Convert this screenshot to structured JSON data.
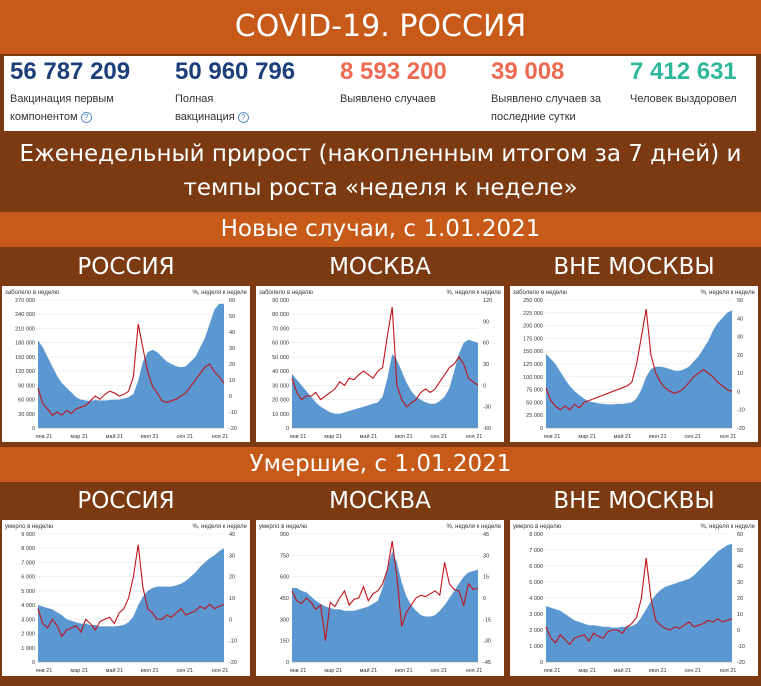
{
  "header": {
    "title": "COVID-19. РОССИЯ"
  },
  "stats": [
    {
      "value": "56 787 209",
      "label": "Вакцинация первым компонентом",
      "color": "#1c3f7a",
      "help": true
    },
    {
      "value": "50 960 796",
      "label": "Полная вакцинация",
      "color": "#1c3f7a",
      "help": true
    },
    {
      "value": "8 593 200",
      "label": "Выявлено случаев",
      "color": "#ee6a52",
      "help": false
    },
    {
      "value": "39 008",
      "label": "Выявлено случаев за последние сутки",
      "color": "#ee6a52",
      "help": false
    },
    {
      "value": "7 412 631",
      "label": "Человек выздоровел",
      "color": "#2fb89a",
      "help": false
    }
  ],
  "subtitle": "Еженедельный прирост (накопленным итогом за 7 дней) и темпы роста «неделя к неделе»",
  "sections": {
    "cases": "Новые случаи, с 1.01.2021",
    "deaths": "Умершие, с 1.01.2021"
  },
  "colors": {
    "area": "#5b97d1",
    "line": "#c0141a",
    "brown": "#7b3a12",
    "orange": "#c75a18"
  },
  "chart_data": [
    {
      "type": "area",
      "region": "РОССИЯ",
      "left_label": "заболело в неделю",
      "right_label": "%, неделя к неделе",
      "x_ticks": [
        "янв 21",
        "мар 21",
        "май 21",
        "июл 21",
        "сен 21",
        "ноя 21"
      ],
      "y_left": {
        "ticks": [
          "0",
          "30 000",
          "60 000",
          "90 000",
          "120 000",
          "150 000",
          "180 000",
          "210 000",
          "240 000",
          "270 000"
        ],
        "min": 0,
        "max": 270000
      },
      "y_right": {
        "ticks": [
          "-20",
          "-10",
          "0",
          "10",
          "20",
          "30",
          "40",
          "50",
          "60"
        ],
        "min": -20,
        "max": 60
      },
      "weekly": [
        185000,
        170000,
        150000,
        130000,
        110000,
        95000,
        85000,
        75000,
        65000,
        60000,
        58000,
        57000,
        59000,
        58000,
        58000,
        59000,
        60000,
        60000,
        62000,
        65000,
        72000,
        100000,
        140000,
        160000,
        165000,
        160000,
        150000,
        140000,
        135000,
        130000,
        128000,
        130000,
        140000,
        150000,
        170000,
        190000,
        220000,
        250000,
        262000,
        262000
      ],
      "growth": [
        5,
        -5,
        -8,
        -12,
        -10,
        -12,
        -9,
        -11,
        -8,
        -7,
        -6,
        -3,
        0,
        -2,
        1,
        3,
        2,
        0,
        1,
        3,
        12,
        45,
        30,
        15,
        6,
        2,
        -3,
        -4,
        -3,
        -2,
        0,
        2,
        6,
        10,
        14,
        18,
        20,
        15,
        12,
        8
      ]
    },
    {
      "type": "area",
      "region": "МОСКВА",
      "left_label": "заболело в неделю",
      "right_label": "%, неделя к неделе",
      "x_ticks": [
        "янв 21",
        "мар 21",
        "май 21",
        "июл 21",
        "сен 21",
        "ноя 21"
      ],
      "y_left": {
        "ticks": [
          "0",
          "10 000",
          "20 000",
          "30 000",
          "40 000",
          "50 000",
          "60 000",
          "70 000",
          "80 000",
          "90 000"
        ],
        "min": 0,
        "max": 90000
      },
      "y_right": {
        "ticks": [
          "-60",
          "-30",
          "0",
          "30",
          "60",
          "90",
          "120"
        ],
        "min": -60,
        "max": 120
      },
      "weekly": [
        38000,
        34000,
        30000,
        26000,
        22000,
        18000,
        15000,
        13000,
        11000,
        10000,
        10000,
        11000,
        12000,
        13000,
        14000,
        15000,
        16000,
        17000,
        18000,
        22000,
        35000,
        52000,
        48000,
        40000,
        32000,
        26000,
        22000,
        20000,
        18000,
        17000,
        17000,
        19000,
        22000,
        28000,
        40000,
        52000,
        60000,
        62000,
        61000,
        60000
      ],
      "growth": [
        10,
        -10,
        -20,
        -15,
        -15,
        -10,
        -20,
        -15,
        -10,
        -5,
        5,
        0,
        10,
        8,
        15,
        20,
        15,
        10,
        20,
        25,
        70,
        110,
        0,
        -20,
        -30,
        -25,
        -20,
        -10,
        -5,
        -10,
        -5,
        5,
        15,
        25,
        30,
        40,
        30,
        10,
        5,
        0
      ]
    },
    {
      "type": "area",
      "region": "ВНЕ МОСКВЫ",
      "left_label": "заболело в неделю",
      "right_label": "%, неделя к неделе",
      "x_ticks": [
        "янв 21",
        "мар 21",
        "май 21",
        "июл 21",
        "сен 21",
        "ноя 21"
      ],
      "y_left": {
        "ticks": [
          "0",
          "25 000",
          "50 000",
          "75 000",
          "100 000",
          "125 000",
          "150 000",
          "175 000",
          "200 000",
          "225 000",
          "250 000"
        ],
        "min": 0,
        "max": 250000
      },
      "y_right": {
        "ticks": [
          "-20",
          "-10",
          "0",
          "10",
          "20",
          "30",
          "40",
          "50"
        ],
        "min": -20,
        "max": 50
      },
      "weekly": [
        145000,
        135000,
        125000,
        110000,
        95000,
        82000,
        72000,
        64000,
        57000,
        52000,
        50000,
        48000,
        47000,
        46000,
        46000,
        47000,
        47000,
        48000,
        50000,
        58000,
        75000,
        100000,
        115000,
        120000,
        120000,
        118000,
        115000,
        112000,
        112000,
        115000,
        120000,
        130000,
        140000,
        155000,
        170000,
        190000,
        205000,
        215000,
        225000,
        230000
      ],
      "growth": [
        2,
        -5,
        -8,
        -10,
        -8,
        -10,
        -7,
        -9,
        -6,
        -5,
        -4,
        -3,
        -2,
        -1,
        0,
        1,
        2,
        3,
        5,
        15,
        30,
        45,
        20,
        10,
        5,
        2,
        0,
        -1,
        0,
        2,
        5,
        8,
        10,
        12,
        10,
        8,
        5,
        3,
        1,
        0
      ]
    },
    {
      "type": "area",
      "region": "РОССИЯ",
      "left_label": "умерло в неделю",
      "right_label": "%, неделя к неделе",
      "x_ticks": [
        "янв 21",
        "мар 21",
        "май 21",
        "июл 21",
        "сен 21",
        "ноя 21"
      ],
      "y_left": {
        "ticks": [
          "0",
          "1 000",
          "2 000",
          "3 000",
          "4 000",
          "5 000",
          "6 000",
          "7 000",
          "8 000",
          "9 000"
        ],
        "min": 0,
        "max": 9000
      },
      "y_right": {
        "ticks": [
          "-20",
          "-10",
          "0",
          "10",
          "20",
          "30",
          "40"
        ],
        "min": -20,
        "max": 40
      },
      "weekly": [
        4000,
        3900,
        3800,
        3700,
        3500,
        3300,
        3000,
        2900,
        2800,
        2700,
        2700,
        2600,
        2600,
        2500,
        2500,
        2500,
        2500,
        2550,
        2600,
        2800,
        3200,
        4000,
        4600,
        5000,
        5200,
        5300,
        5300,
        5300,
        5300,
        5400,
        5500,
        5700,
        6000,
        6300,
        6700,
        7000,
        7300,
        7500,
        7800,
        8000
      ],
      "growth": [
        5,
        -2,
        -4,
        0,
        -3,
        -8,
        -5,
        -4,
        -3,
        -6,
        0,
        -2,
        -5,
        -1,
        0,
        1,
        -2,
        3,
        5,
        10,
        20,
        35,
        15,
        5,
        3,
        0,
        0,
        2,
        1,
        3,
        5,
        2,
        3,
        4,
        6,
        5,
        7,
        5,
        6,
        7
      ]
    },
    {
      "type": "area",
      "region": "МОСКВА",
      "left_label": "умерло в неделю",
      "right_label": "%, неделя к неделе",
      "x_ticks": [
        "янв 21",
        "мар 21",
        "май 21",
        "июл 21",
        "сен 21",
        "ноя 21"
      ],
      "y_left": {
        "ticks": [
          "0",
          "150",
          "300",
          "450",
          "600",
          "750",
          "900"
        ],
        "min": 0,
        "max": 900
      },
      "y_right": {
        "ticks": [
          "-45",
          "-30",
          "-15",
          "0",
          "15",
          "30",
          "45"
        ],
        "min": -45,
        "max": 45
      },
      "weekly": [
        520,
        520,
        500,
        490,
        460,
        430,
        410,
        390,
        380,
        370,
        370,
        360,
        360,
        360,
        370,
        380,
        390,
        410,
        430,
        520,
        650,
        780,
        700,
        560,
        460,
        400,
        360,
        330,
        320,
        320,
        330,
        360,
        400,
        450,
        500,
        550,
        600,
        630,
        640,
        650
      ],
      "growth": [
        5,
        -2,
        -4,
        0,
        -3,
        -8,
        -5,
        -30,
        -3,
        -6,
        0,
        5,
        -5,
        -1,
        0,
        8,
        -2,
        3,
        5,
        10,
        20,
        40,
        15,
        -20,
        -10,
        -5,
        0,
        2,
        1,
        3,
        5,
        2,
        25,
        10,
        6,
        5,
        -5,
        10,
        6,
        7
      ]
    },
    {
      "type": "area",
      "region": "ВНЕ МОСКВЫ",
      "left_label": "умерло в неделю",
      "right_label": "%, неделя к неделе",
      "x_ticks": [
        "янв 21",
        "мар 21",
        "май 21",
        "июл 21",
        "сен 21",
        "ноя 21"
      ],
      "y_left": {
        "ticks": [
          "0",
          "1 000",
          "2 000",
          "3 000",
          "4 000",
          "5 000",
          "6 000",
          "7 000",
          "8 000"
        ],
        "min": 0,
        "max": 8000
      },
      "y_right": {
        "ticks": [
          "-20",
          "-10",
          "0",
          "10",
          "20",
          "30",
          "40",
          "50",
          "60"
        ],
        "min": -20,
        "max": 60
      },
      "weekly": [
        3500,
        3400,
        3300,
        3200,
        3000,
        2800,
        2600,
        2500,
        2400,
        2300,
        2300,
        2250,
        2200,
        2200,
        2150,
        2150,
        2200,
        2200,
        2250,
        2400,
        2800,
        3300,
        3800,
        4200,
        4500,
        4700,
        4800,
        4900,
        5000,
        5100,
        5200,
        5400,
        5700,
        6000,
        6300,
        6600,
        6900,
        7100,
        7300,
        7400
      ],
      "growth": [
        2,
        -5,
        -8,
        -3,
        -6,
        -9,
        -5,
        -4,
        -3,
        -7,
        -2,
        -4,
        -5,
        -1,
        0,
        0,
        -2,
        2,
        4,
        8,
        20,
        45,
        20,
        6,
        3,
        1,
        0,
        2,
        1,
        3,
        5,
        2,
        3,
        4,
        6,
        5,
        7,
        5,
        6,
        7
      ]
    }
  ]
}
